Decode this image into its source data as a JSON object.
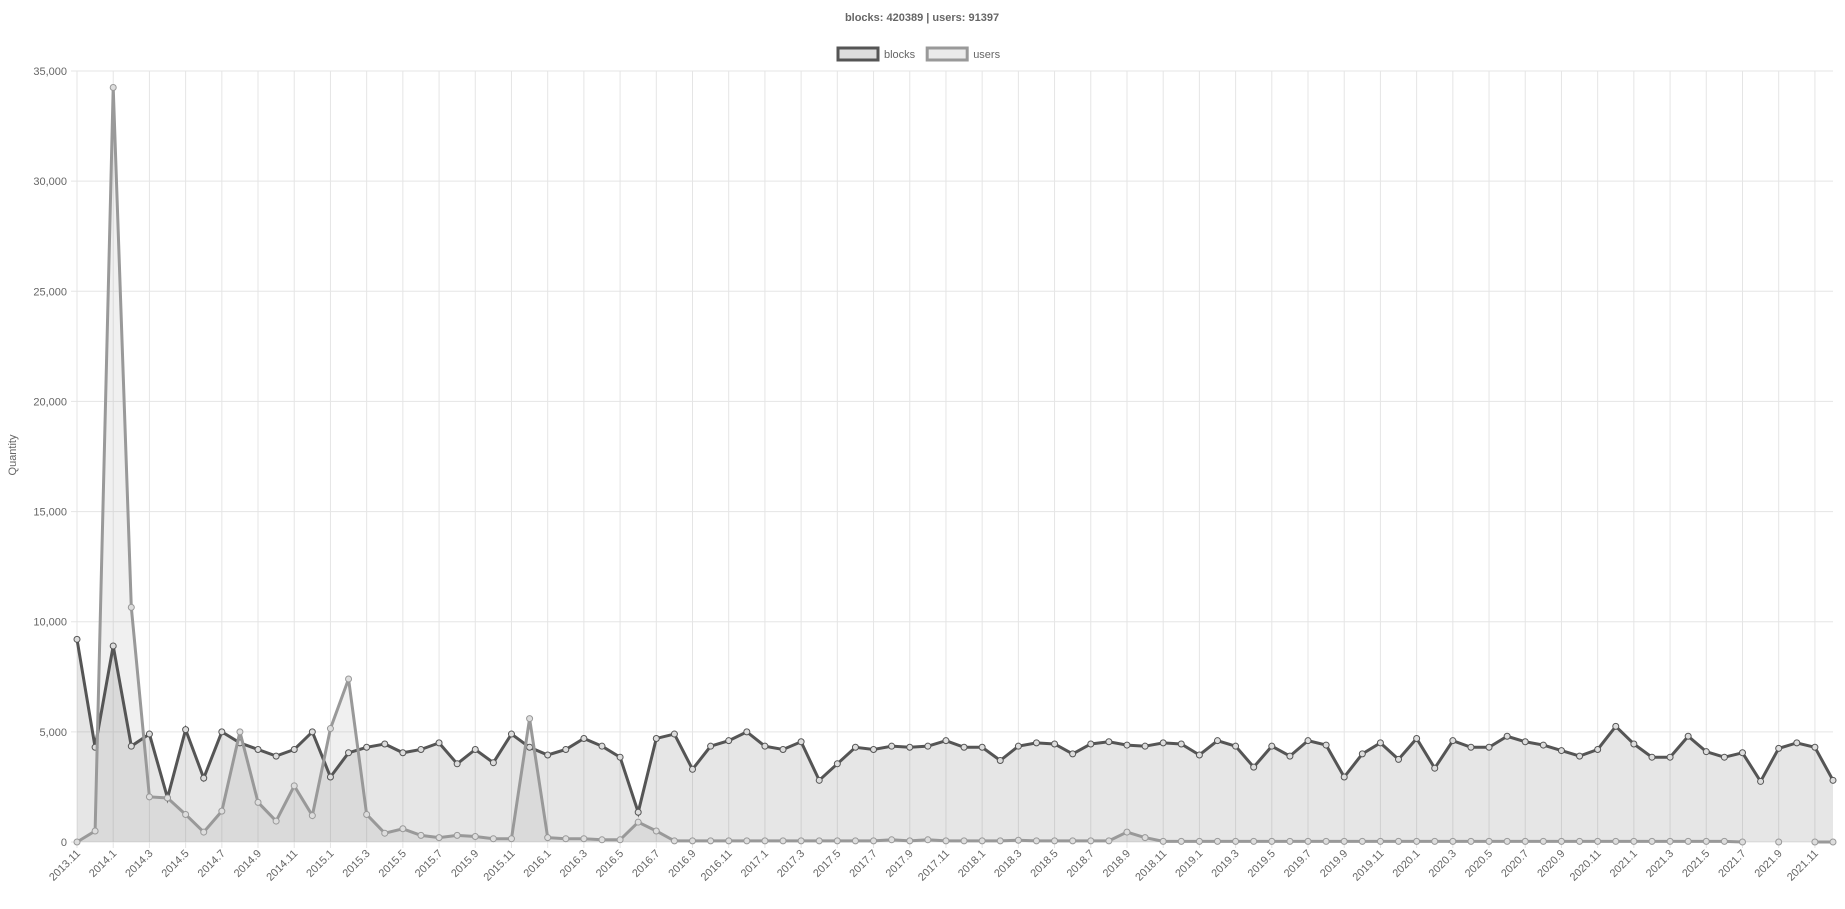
{
  "chart_data": {
    "type": "line",
    "title": "blocks: 420389 | users: 91397",
    "y_label": "Quantity",
    "categories": [
      "2013.11",
      null,
      "2014.1",
      null,
      "2014.3",
      null,
      "2014.5",
      null,
      "2014.7",
      null,
      "2014.9",
      null,
      "2014.11",
      null,
      "2015.1",
      null,
      "2015.3",
      null,
      "2015.5",
      null,
      "2015.7",
      null,
      "2015.9",
      null,
      "2015.11",
      null,
      "2016.1",
      null,
      "2016.3",
      null,
      "2016.5",
      null,
      "2016.7",
      null,
      "2016.9",
      null,
      "2016.11",
      null,
      "2017.1",
      null,
      "2017.3",
      null,
      "2017.5",
      null,
      "2017.7",
      null,
      "2017.9",
      null,
      "2017.11",
      null,
      "2018.1",
      null,
      "2018.3",
      null,
      "2018.5",
      null,
      "2018.7",
      null,
      "2018.9",
      null,
      "2018.11",
      null,
      "2019.1",
      null,
      "2019.3",
      null,
      "2019.5",
      null,
      "2019.7",
      null,
      "2019.9",
      null,
      "2019.11",
      null,
      "2020.1",
      null,
      "2020.3",
      null,
      "2020.5",
      null,
      "2020.7",
      null,
      "2020.9",
      null,
      "2020.11",
      null,
      "2021.1",
      null,
      "2021.3",
      null,
      "2021.5",
      null,
      "2021.7",
      null,
      "2021.9",
      null,
      "2021.11",
      null
    ],
    "series": [
      {
        "name": "blocks",
        "color": "#555555",
        "values": [
          9200,
          4300,
          8900,
          4350,
          4900,
          2000,
          5100,
          2900,
          5000,
          4500,
          4200,
          3900,
          4200,
          5000,
          2950,
          4050,
          4300,
          4450,
          4050,
          4200,
          4500,
          3550,
          4200,
          3600,
          4900,
          4300,
          3950,
          4200,
          4700,
          4350,
          3850,
          1350,
          4700,
          4900,
          3300,
          4350,
          4600,
          5000,
          4350,
          4200,
          4550,
          2800,
          3550,
          4300,
          4200,
          4350,
          4300,
          4350,
          4600,
          4300,
          4300,
          3700,
          4350,
          4500,
          4450,
          4000,
          4450,
          4550,
          4400,
          4350,
          4500,
          4450,
          3950,
          4600,
          4350,
          3400,
          4350,
          3900,
          4600,
          4400,
          2950,
          4000,
          4500,
          3750,
          4700,
          3350,
          4600,
          4300,
          4300,
          4800,
          4550,
          4400,
          4150,
          3900,
          4200,
          5250,
          4450,
          3850,
          3850,
          4800,
          4100,
          3850,
          4050,
          2750,
          4250,
          4500,
          4300,
          2800
        ]
      },
      {
        "name": "users",
        "color": "#999999",
        "values": [
          0,
          500,
          34250,
          10650,
          2050,
          2000,
          1250,
          450,
          1400,
          5000,
          1800,
          950,
          2550,
          1200,
          5150,
          7400,
          1250,
          400,
          600,
          300,
          200,
          300,
          250,
          150,
          150,
          5600,
          200,
          150,
          150,
          100,
          100,
          900,
          500,
          50,
          50,
          50,
          50,
          50,
          50,
          50,
          50,
          50,
          50,
          50,
          50,
          100,
          50,
          100,
          50,
          50,
          50,
          50,
          80,
          50,
          50,
          50,
          50,
          50,
          450,
          200,
          30,
          30,
          30,
          30,
          30,
          30,
          30,
          30,
          30,
          30,
          30,
          30,
          30,
          30,
          30,
          30,
          30,
          30,
          30,
          30,
          30,
          30,
          30,
          30,
          30,
          30,
          30,
          30,
          30,
          30,
          30,
          30,
          0,
          null,
          0,
          null,
          0,
          0
        ]
      }
    ],
    "ylim": [
      0,
      35000
    ],
    "yticks": [
      0,
      {
        "value": 5000,
        "label": "5,000"
      },
      {
        "value": 10000,
        "label": "10,000"
      },
      {
        "value": 15000,
        "label": "15,000"
      },
      {
        "value": 20000,
        "label": "20,000"
      },
      {
        "value": 25000,
        "label": "25,000"
      },
      {
        "value": 30000,
        "label": "30,000"
      },
      {
        "value": 35000,
        "label": "35,000"
      }
    ],
    "grid": true
  }
}
